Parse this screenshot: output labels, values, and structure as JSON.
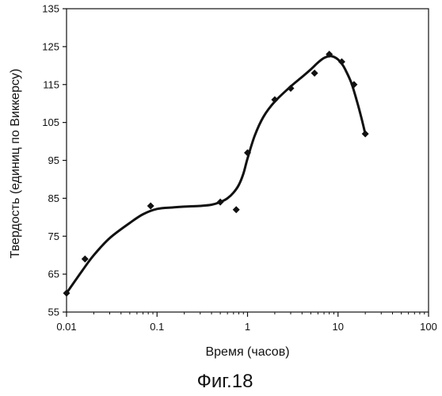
{
  "caption": "Фиг.18",
  "chart_data": {
    "type": "scatter",
    "title": "",
    "xlabel": "Время (часов)",
    "ylabel": "Твердость (единиц по Виккерсу)",
    "x_scale": "log",
    "xlim": [
      0.01,
      100
    ],
    "ylim": [
      55,
      135
    ],
    "x_ticks": [
      0.01,
      0.1,
      1,
      10,
      100
    ],
    "x_tick_labels": [
      "0.01",
      "0.1",
      "1",
      "10",
      "100"
    ],
    "y_ticks": [
      55,
      65,
      75,
      85,
      95,
      105,
      115,
      125,
      135
    ],
    "y_tick_labels": [
      "55",
      "65",
      "75",
      "85",
      "95",
      "105",
      "115",
      "125",
      "135"
    ],
    "grid": false,
    "legend": "none",
    "series": [
      {
        "x": [
          0.01,
          0.016,
          0.085,
          0.5,
          0.75,
          1.0,
          2.0,
          3.0,
          5.5,
          8.0,
          11.0,
          15.0,
          20.0
        ],
        "y": [
          60,
          69,
          83,
          84,
          82,
          97,
          111,
          114,
          118,
          123,
          121,
          115,
          102
        ],
        "marker": "diamond",
        "color": "#111111"
      }
    ],
    "trend_line": {
      "x": [
        0.01,
        0.015,
        0.02,
        0.03,
        0.05,
        0.07,
        0.1,
        0.15,
        0.2,
        0.3,
        0.4,
        0.5,
        0.6,
        0.7,
        0.8,
        0.9,
        1.0,
        1.2,
        1.5,
        2.0,
        3.0,
        4.0,
        5.0,
        6.0,
        7.0,
        8.0,
        9.0,
        10.0,
        11.0,
        12.0,
        14.0,
        16.0,
        18.0,
        20.0
      ],
      "y": [
        60,
        66,
        70,
        74.5,
        78.5,
        80.8,
        82.2,
        82.6,
        82.8,
        83.0,
        83.3,
        84.0,
        85.0,
        86.5,
        88.5,
        91.5,
        95.5,
        101.5,
        106.5,
        110.5,
        114.5,
        117.0,
        119.0,
        120.8,
        122.0,
        122.5,
        122.3,
        121.6,
        120.5,
        119.0,
        115.5,
        111.0,
        106.5,
        102
      ],
      "color": "#111111"
    }
  }
}
